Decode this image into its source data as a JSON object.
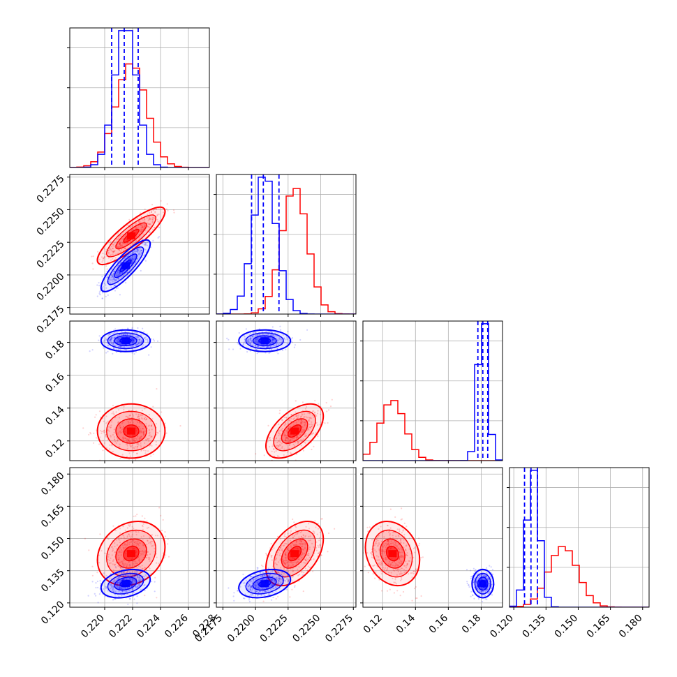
{
  "chart_data": {
    "type": "corner",
    "title": "",
    "parameters": [
      "",
      "",
      "",
      ""
    ],
    "grid": true,
    "series": [
      {
        "name": "",
        "color": "#ff0000",
        "means": [
          0.2219,
          0.223,
          0.126,
          0.143
        ],
        "sds": [
          0.0011,
          0.001,
          0.0075,
          0.0068
        ],
        "quantile_lines": false
      },
      {
        "name": "",
        "color": "#0000ff",
        "means": [
          0.2215,
          0.2207,
          0.181,
          0.129
        ],
        "sds": [
          0.0008,
          0.0009,
          0.003,
          0.003
        ],
        "quantile_lines": true,
        "quantiles": [
          [
            0.2205,
            0.2214,
            0.2224
          ],
          [
            0.2197,
            0.2206,
            0.2218
          ],
          [
            0.178,
            0.181,
            0.184
          ],
          [
            0.125,
            0.128,
            0.131
          ]
        ]
      }
    ],
    "axes": [
      {
        "range": [
          0.2175,
          0.2275
        ],
        "ticks": [
          0.22,
          0.222,
          0.224,
          0.226,
          0.228
        ],
        "tick_labels": [
          "0.220",
          "0.222",
          "0.224",
          "0.226",
          "0.228"
        ]
      },
      {
        "range": [
          0.217,
          0.2277
        ],
        "ticks": [
          0.2175,
          0.22,
          0.2225,
          0.225,
          0.2275
        ],
        "tick_labels": [
          "0.2175",
          "0.2200",
          "0.2225",
          "0.2250",
          "0.2275"
        ]
      },
      {
        "range": [
          0.108,
          0.193
        ],
        "ticks": [
          0.12,
          0.14,
          0.16,
          0.18
        ],
        "tick_labels": [
          "0.12",
          "0.14",
          "0.16",
          "0.18"
        ]
      },
      {
        "range": [
          0.118,
          0.183
        ],
        "ticks": [
          0.12,
          0.135,
          0.15,
          0.165,
          0.18
        ],
        "tick_labels": [
          "0.120",
          "0.135",
          "0.150",
          "0.165",
          "0.180"
        ]
      }
    ],
    "correlations": {
      "red": {
        "0-1": 0.85,
        "0-2": 0.0,
        "0-3": 0.2,
        "1-2": 0.55,
        "1-3": 0.45,
        "2-3": -0.2
      },
      "blue": {
        "0-1": 0.85,
        "0-2": 0.0,
        "0-3": 0.3,
        "1-2": 0.0,
        "1-3": 0.3,
        "2-3": 0.0
      }
    }
  }
}
